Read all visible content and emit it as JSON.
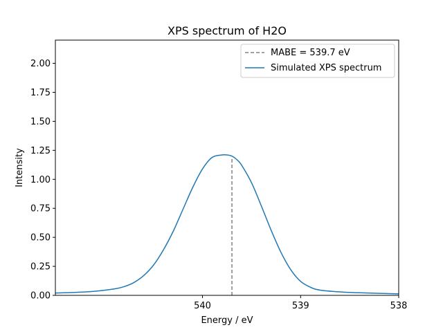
{
  "chart_data": {
    "type": "line",
    "title": "XPS spectrum of H2O",
    "xlabel": "Energy / eV",
    "ylabel": "Intensity",
    "xlim": [
      541.5,
      538.0
    ],
    "ylim": [
      0.0,
      2.2
    ],
    "x_reversed": true,
    "x_ticks": [
      540,
      539,
      538
    ],
    "x_tick_labels": [
      "540",
      "539",
      "538"
    ],
    "y_ticks": [
      0.0,
      0.25,
      0.5,
      0.75,
      1.0,
      1.25,
      1.5,
      1.75,
      2.0
    ],
    "y_tick_labels": [
      "0.00",
      "0.25",
      "0.50",
      "0.75",
      "1.00",
      "1.25",
      "1.50",
      "1.75",
      "2.00"
    ],
    "grid": false,
    "legend_position": "top-right",
    "series": [
      {
        "name": "Simulated XPS spectrum",
        "color": "#1f77b4",
        "style": "solid",
        "x": [
          541.5,
          541.3,
          541.1,
          540.9,
          540.8,
          540.7,
          540.6,
          540.5,
          540.4,
          540.3,
          540.2,
          540.1,
          540.0,
          539.9,
          539.8,
          539.75,
          539.7,
          539.65,
          539.6,
          539.5,
          539.4,
          539.3,
          539.2,
          539.1,
          539.0,
          538.9,
          538.8,
          538.6,
          538.4,
          538.2,
          538.0
        ],
        "y": [
          0.02,
          0.025,
          0.035,
          0.055,
          0.075,
          0.11,
          0.17,
          0.26,
          0.39,
          0.55,
          0.74,
          0.93,
          1.09,
          1.19,
          1.21,
          1.21,
          1.2,
          1.17,
          1.12,
          0.97,
          0.77,
          0.56,
          0.37,
          0.22,
          0.12,
          0.07,
          0.045,
          0.03,
          0.022,
          0.017,
          0.013
        ]
      }
    ],
    "vlines": [
      {
        "name": "MABE = 539.7 eV",
        "x": 539.7,
        "y_max": 1.18,
        "color": "#808080",
        "style": "dashed"
      }
    ]
  },
  "colors": {
    "spectrum": "#1f77b4",
    "mabe_line": "#808080",
    "legend_border": "#cccccc"
  }
}
